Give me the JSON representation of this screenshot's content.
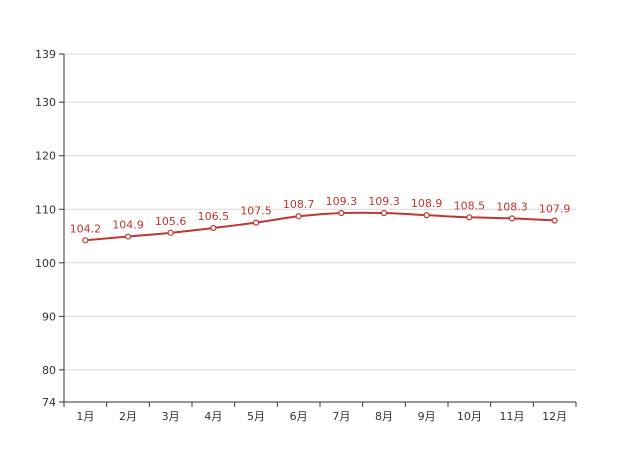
{
  "chart_data": {
    "type": "line",
    "title": "",
    "xlabel": "",
    "ylabel": "",
    "categories": [
      "1月",
      "2月",
      "3月",
      "4月",
      "5月",
      "6月",
      "7月",
      "8月",
      "9月",
      "10月",
      "11月",
      "12月"
    ],
    "series": [
      {
        "values": [
          104.2,
          104.9,
          105.6,
          106.5,
          107.5,
          108.7,
          109.3,
          109.3,
          108.9,
          108.5,
          108.3,
          107.9
        ],
        "labels": [
          "104.2",
          "104.9",
          "105.6",
          "106.5",
          "107.5",
          "108.7",
          "109.3",
          "109.3",
          "108.9",
          "108.5",
          "108.3",
          "107.9"
        ],
        "color": "#c23531"
      }
    ],
    "ylim": [
      74,
      139
    ],
    "yticks": [
      74,
      80,
      90,
      100,
      110,
      120,
      130,
      139
    ],
    "ytick_labels": [
      "74",
      "80",
      "90",
      "100",
      "110",
      "120",
      "130",
      "139"
    ],
    "grid": true,
    "smooth": true,
    "legend": "none"
  }
}
